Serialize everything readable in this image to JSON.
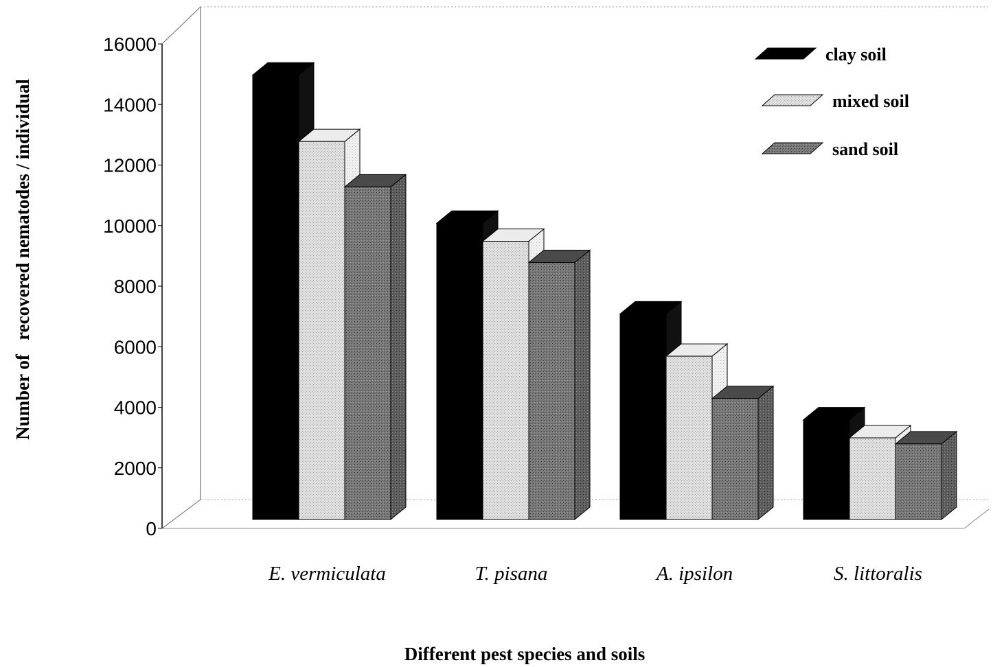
{
  "chart_data": {
    "type": "bar",
    "title": "",
    "xlabel": "Different pest species and soils",
    "ylabel": "Number of   recovered nematodes / individual",
    "ylim": [
      0,
      16000
    ],
    "yticks": [
      0,
      2000,
      4000,
      6000,
      8000,
      10000,
      12000,
      14000,
      16000
    ],
    "categories": [
      "E. vermiculata",
      "T. pisana",
      "A. ipsilon",
      "S. littoralis"
    ],
    "series": [
      {
        "name": "clay soil",
        "values": [
          14700,
          9800,
          6800,
          3300
        ],
        "color": "#000000"
      },
      {
        "name": "mixed soil",
        "values": [
          12500,
          9200,
          5400,
          2700
        ],
        "color": "#d6d6d6"
      },
      {
        "name": "sand soil",
        "values": [
          11000,
          8500,
          4000,
          2500
        ],
        "color": "#6e6e6e"
      }
    ],
    "legend_position": "top-right",
    "grid": false,
    "three_d": true
  }
}
